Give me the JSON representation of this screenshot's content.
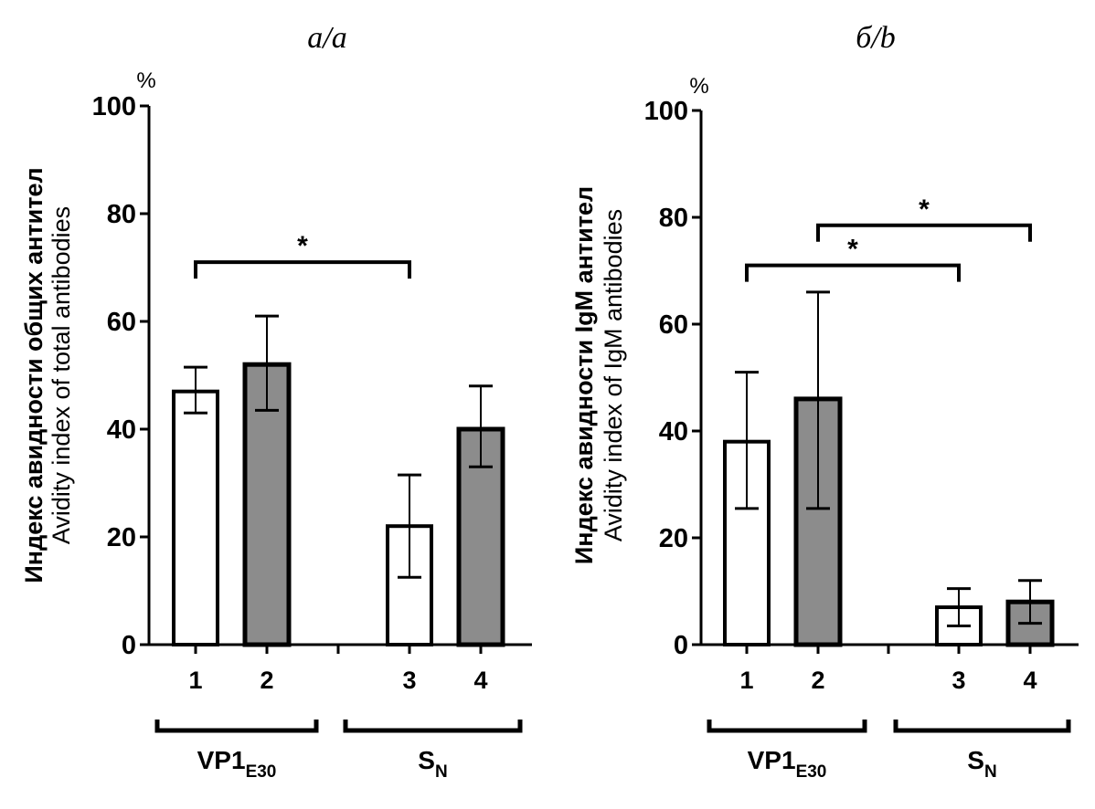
{
  "chart_data": [
    {
      "type": "bar",
      "panel_title": "а/a",
      "unit": "%",
      "ylabel_ru": "Индекс авидности общих антител",
      "ylabel_en": "Avidity index of total antibodies",
      "ylim": [
        0,
        100
      ],
      "yticks": [
        0,
        20,
        40,
        60,
        80,
        100
      ],
      "grid": false,
      "categories": [
        "1",
        "2",
        "3",
        "4"
      ],
      "values": [
        47,
        52,
        22,
        40
      ],
      "error_upper": [
        51.5,
        61,
        31.5,
        48
      ],
      "error_lower": [
        43,
        43.5,
        12.5,
        33
      ],
      "bar_fills": [
        "#ffffff",
        "#8c8c8c",
        "#ffffff",
        "#8c8c8c"
      ],
      "groups": [
        {
          "label": "VP1",
          "subscript": "E30",
          "categories": [
            "1",
            "2"
          ]
        },
        {
          "label": "S",
          "subscript": "N",
          "categories": [
            "3",
            "4"
          ]
        }
      ],
      "significance": [
        {
          "from": "1",
          "to": "3",
          "label": "*",
          "level": 71
        }
      ]
    },
    {
      "type": "bar",
      "panel_title": "б/b",
      "unit": "%",
      "ylabel_ru": "Индекс авидности IgM антител",
      "ylabel_en": "Avidity index of IgM antibodies",
      "ylim": [
        0,
        100
      ],
      "yticks": [
        0,
        20,
        40,
        60,
        80,
        100
      ],
      "grid": false,
      "categories": [
        "1",
        "2",
        "3",
        "4"
      ],
      "values": [
        38,
        46,
        7,
        8
      ],
      "error_upper": [
        51,
        66,
        10.5,
        12
      ],
      "error_lower": [
        25.5,
        25.5,
        3.5,
        4
      ],
      "bar_fills": [
        "#ffffff",
        "#8c8c8c",
        "#ffffff",
        "#8c8c8c"
      ],
      "groups": [
        {
          "label": "VP1",
          "subscript": "E30",
          "categories": [
            "1",
            "2"
          ]
        },
        {
          "label": "S",
          "subscript": "N",
          "categories": [
            "3",
            "4"
          ]
        }
      ],
      "significance": [
        {
          "from": "1",
          "to": "3",
          "label": "*",
          "level": 71
        },
        {
          "from": "2",
          "to": "4",
          "label": "*",
          "level": 78.5
        }
      ]
    }
  ]
}
